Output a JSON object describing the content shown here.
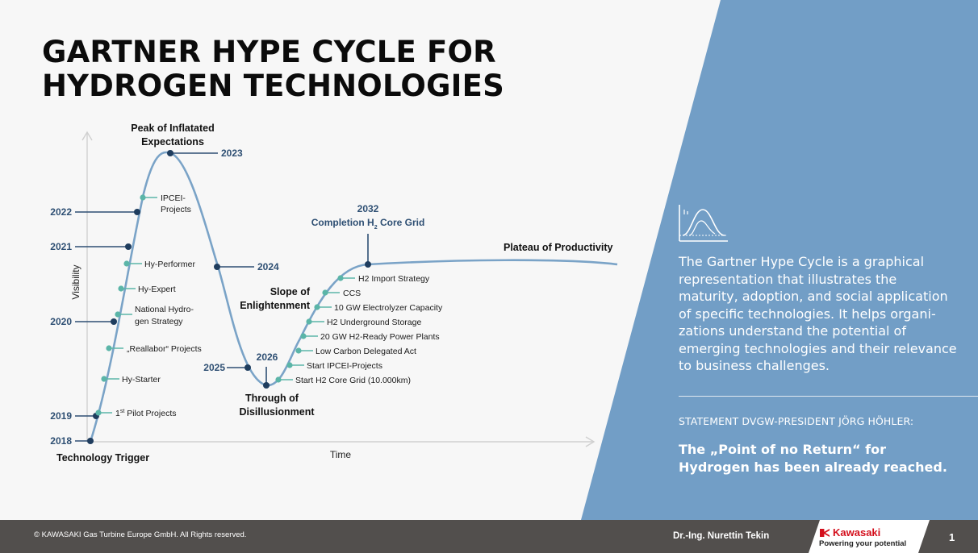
{
  "slide": {
    "title_line1": "GARTNER HYPE CYCLE FOR",
    "title_line2": "HYDROGEN TECHNOLOGIES",
    "description": "The Gartner Hype Cycle is a graphical representation that illustrates the maturity, adoption, and social application of specific technologies. It helps organi-zations understand the potential of emerging technologies and their relevance to business challenges.",
    "statement_label": "STATEMENT DVGW-PRESIDENT JÖRG HÖHLER:",
    "statement": "The „Point of no Return“ for Hydrogen has been already reached.",
    "copyright": "©  KAWASAKI Gas Turbine Europe GmbH.  All Rights reserved.",
    "author": "Dr.-Ing. Nurettin Tekin",
    "brand": "Kawasaki",
    "slogan": "Powering your potential",
    "page_number": "1"
  },
  "colors": {
    "curve": "#7aa3c7",
    "dark_marker": "#1f3d5e",
    "teal_marker": "#5bb5a8",
    "panel": "#729ec6",
    "year_text": "#2e4f73"
  },
  "diagram": {
    "y_axis_label": "Visibility",
    "x_axis_label": "Time",
    "phases": {
      "trigger": "Technology Trigger",
      "peak_line1": "Peak of Inflatated",
      "peak_line2": "Expectations",
      "trough_line1": "Through of",
      "trough_line2": "Disillusionment",
      "slope_line1": "Slope of",
      "slope_line2": "Enlightenment",
      "plateau": "Plateau of Productivity"
    },
    "years": [
      "2018",
      "2019",
      "2020",
      "2021",
      "2022",
      "2023",
      "2024",
      "2025",
      "2026",
      "2032"
    ],
    "completion_label": "Completion H",
    "completion_sub": "2",
    "completion_suffix": " Core Grid",
    "milestones_early": [
      "1st Pilot Projects",
      "Hy-Starter",
      "„Reallabor“ Projects",
      "National Hydro-",
      "gen Strategy",
      "Hy-Expert",
      "Hy-Performer",
      "IPCEI-",
      "Projects"
    ],
    "milestones_late": [
      "Start H2 Core Grid (10.000km)",
      "Start IPCEI-Projects",
      "Low Carbon Delegated Act",
      "20 GW H2-Ready Power Plants",
      "H2 Underground Storage",
      "10 GW Electrolyzer Capacity",
      "CCS",
      "H2 Import Strategy"
    ]
  },
  "icons": {
    "panel_icon": "bell-curve-chart-icon"
  }
}
